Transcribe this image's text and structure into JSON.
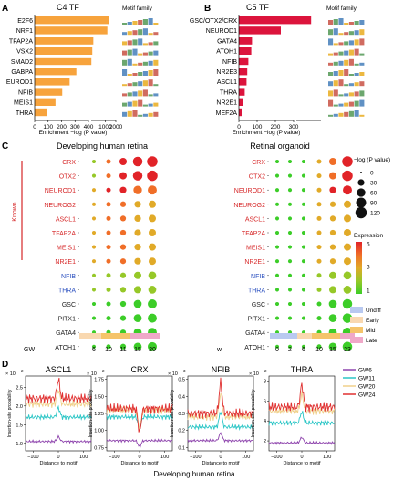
{
  "panels": {
    "A": {
      "letter": "A",
      "title": "C4 TF",
      "motif_label": "Motif family",
      "xlabel": "Enrichment −log (P value)"
    },
    "B": {
      "letter": "B",
      "title": "C5 TF",
      "motif_label": "Motif family",
      "xlabel": "Enrichment −log (P value)"
    },
    "C": {
      "letter": "C",
      "left_title": "Developing human retina",
      "right_title": "Retinal organoid",
      "known_label": "Known",
      "left_xlabel": "GW",
      "right_xlabel": "w"
    },
    "D": {
      "letter": "D",
      "xlabel": "Distance to motif",
      "ylabel": "Insertion-site probability",
      "footer": "Developing human retina",
      "sci": "× 10"
    }
  },
  "colors": {
    "orange": "#f7a33c",
    "crimson": "#dc143c",
    "known_red": "#d62728",
    "blue_label": "#2a4fbf",
    "gw6": "#8e44ad",
    "gw11": "#2bc6c6",
    "gw20": "#f0d08a",
    "gw24": "#e03030"
  },
  "chart_data": [
    {
      "type": "bar",
      "id": "A",
      "categories": [
        "E2F6",
        "NRF1",
        "TFAP2A",
        "VSX2",
        "SMAD2",
        "GABPA",
        "EUROD1",
        "NFIB",
        "MEIS1",
        "THRA"
      ],
      "values": [
        1300,
        1150,
        460,
        430,
        405,
        310,
        260,
        205,
        155,
        90
      ],
      "xticks": [
        "0",
        "100",
        "200",
        "300",
        "400",
        "1000",
        "2000"
      ],
      "xlabel": "Enrichment −log (P value)",
      "broken_axis": true,
      "color": "#f7a33c"
    },
    {
      "type": "bar",
      "id": "B",
      "categories": [
        "GSC/OTX2/CRX",
        "NEUROD1",
        "GATA4",
        "ATOH1",
        "NFIB",
        "NR2E3",
        "ASCL1",
        "THRA",
        "NR2E1",
        "MEF2A"
      ],
      "values": [
        360,
        230,
        72,
        68,
        52,
        46,
        42,
        32,
        22,
        15
      ],
      "xticks": [
        "0",
        "100",
        "200",
        "300"
      ],
      "xlabel": "Enrichment −log (P value)",
      "broken_axis": true,
      "color": "#dc143c"
    },
    {
      "type": "scatter",
      "id": "C",
      "rows": [
        "CRX",
        "OTX2",
        "NEUROD1",
        "NEUROG2",
        "ASCL1",
        "TFAP2A",
        "MEIS1",
        "NR2E1",
        "NFIB",
        "THRA",
        "GSC",
        "PITX1",
        "GATA4",
        "ATOH1"
      ],
      "row_groups": [
        "known",
        "known",
        "known",
        "known",
        "known",
        "known",
        "known",
        "known",
        "blue",
        "blue",
        "black",
        "black",
        "black",
        "black"
      ],
      "left_columns": [
        "6",
        "10",
        "11",
        "15",
        "20"
      ],
      "right_columns": [
        "0",
        "2",
        "6",
        "10",
        "15",
        "23"
      ],
      "stages": [
        "Undiff",
        "Early",
        "Mid",
        "Late"
      ],
      "size_legend_title": "−log (P value)",
      "size_legend": [
        0,
        30,
        60,
        90,
        120
      ],
      "color_legend_title": "Expression",
      "color_legend": [
        1,
        3,
        5
      ],
      "left_size": [
        [
          5,
          10,
          40,
          80,
          100
        ],
        [
          5,
          10,
          40,
          80,
          100
        ],
        [
          5,
          10,
          30,
          60,
          70
        ],
        [
          5,
          10,
          20,
          30,
          40
        ],
        [
          5,
          10,
          20,
          30,
          40
        ],
        [
          5,
          10,
          20,
          30,
          40
        ],
        [
          5,
          10,
          20,
          30,
          40
        ],
        [
          5,
          10,
          20,
          30,
          40
        ],
        [
          5,
          10,
          20,
          40,
          50
        ],
        [
          5,
          10,
          20,
          40,
          50
        ],
        [
          5,
          10,
          20,
          50,
          70
        ],
        [
          5,
          10,
          20,
          50,
          70
        ],
        [
          5,
          10,
          20,
          50,
          70
        ],
        [
          5,
          10,
          20,
          50,
          70
        ]
      ],
      "left_expr": [
        [
          2,
          4,
          5,
          5,
          5
        ],
        [
          2,
          4,
          5,
          5,
          5
        ],
        [
          3,
          5,
          5,
          4,
          4
        ],
        [
          3,
          4,
          4,
          3,
          3
        ],
        [
          3,
          4,
          4,
          3,
          3
        ],
        [
          3,
          4,
          4,
          3,
          3
        ],
        [
          3,
          4,
          4,
          3,
          3
        ],
        [
          3,
          4,
          4,
          3,
          3
        ],
        [
          2,
          2,
          2,
          2,
          2
        ],
        [
          2,
          2,
          2,
          2,
          2
        ],
        [
          1,
          1,
          1,
          1,
          1
        ],
        [
          1,
          1,
          1,
          1,
          1
        ],
        [
          1,
          1,
          1,
          1,
          1
        ],
        [
          1,
          1,
          1,
          1,
          1
        ]
      ],
      "right_size": [
        [
          5,
          5,
          5,
          10,
          40,
          100
        ],
        [
          5,
          5,
          5,
          10,
          40,
          100
        ],
        [
          5,
          5,
          5,
          10,
          30,
          70
        ],
        [
          5,
          5,
          5,
          10,
          20,
          40
        ],
        [
          5,
          5,
          5,
          10,
          20,
          40
        ],
        [
          5,
          5,
          5,
          10,
          20,
          40
        ],
        [
          5,
          5,
          5,
          10,
          20,
          40
        ],
        [
          5,
          5,
          5,
          10,
          20,
          40
        ],
        [
          5,
          5,
          5,
          10,
          40,
          50
        ],
        [
          5,
          5,
          5,
          10,
          40,
          50
        ],
        [
          5,
          5,
          5,
          10,
          50,
          80
        ],
        [
          5,
          5,
          5,
          10,
          50,
          80
        ],
        [
          5,
          5,
          5,
          10,
          50,
          80
        ],
        [
          5,
          5,
          5,
          10,
          50,
          80
        ]
      ],
      "right_expr": [
        [
          1,
          1,
          1,
          3,
          4,
          5
        ],
        [
          1,
          1,
          1,
          3,
          4,
          5
        ],
        [
          1,
          1,
          1,
          3,
          5,
          5
        ],
        [
          1,
          1,
          1,
          3,
          3,
          3
        ],
        [
          1,
          1,
          1,
          3,
          3,
          3
        ],
        [
          1,
          1,
          1,
          3,
          3,
          3
        ],
        [
          1,
          1,
          1,
          3,
          3,
          3
        ],
        [
          1,
          1,
          1,
          3,
          3,
          3
        ],
        [
          1,
          1,
          1,
          2,
          2,
          2
        ],
        [
          1,
          1,
          1,
          2,
          2,
          2
        ],
        [
          1,
          1,
          1,
          1,
          1,
          1
        ],
        [
          1,
          1,
          1,
          1,
          1,
          1
        ],
        [
          1,
          1,
          1,
          1,
          1,
          1
        ],
        [
          1,
          1,
          1,
          1,
          1,
          1
        ]
      ]
    },
    {
      "type": "line",
      "id": "D",
      "panels": [
        {
          "title": "ASCL1",
          "exp": "2",
          "yticks": [
            "1.0",
            "1.5",
            "2.0",
            "2.5"
          ],
          "ylim": [
            0.8,
            2.8
          ],
          "levels": {
            "GW6": 1.05,
            "GW11": 1.7,
            "GW20": 2.05,
            "GW24": 2.2
          },
          "peak": 0.5
        },
        {
          "title": "CRX",
          "exp": "2",
          "yticks": [
            "0.75",
            "1.00",
            "1.25",
            "1.50",
            "1.75"
          ],
          "ylim": [
            0.7,
            1.8
          ],
          "levels": {
            "GW6": 0.85,
            "GW11": 1.2,
            "GW20": 1.3,
            "GW24": 1.32
          },
          "peak": 0.35
        },
        {
          "title": "NFIB",
          "exp": "3",
          "yticks": [
            "0.1",
            "0.2",
            "0.3",
            "0.4",
            "0.5"
          ],
          "ylim": [
            0.08,
            0.52
          ],
          "levels": {
            "GW6": 0.14,
            "GW11": 0.22,
            "GW20": 0.28,
            "GW24": 0.3
          },
          "peak": 0.18
        },
        {
          "title": "THRA",
          "exp": "2",
          "yticks": [
            "2",
            "4",
            "6",
            "8"
          ],
          "ylim": [
            1,
            8.5
          ],
          "levels": {
            "GW6": 1.8,
            "GW11": 3.8,
            "GW20": 5.0,
            "GW24": 5.4
          },
          "peak": 2.2
        }
      ],
      "xticks": [
        "−100",
        "0",
        "100"
      ],
      "legend": [
        "GW6",
        "GW11",
        "GW20",
        "GW24"
      ]
    }
  ]
}
